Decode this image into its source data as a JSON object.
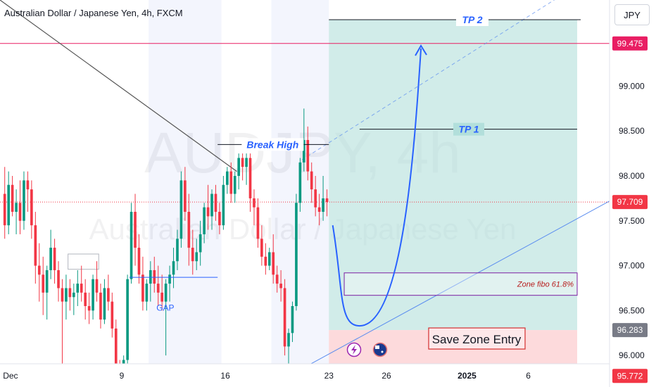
{
  "header": {
    "title": "Australian Dollar / Japanese Yen, 4h, FXCM",
    "currency_button": "JPY"
  },
  "watermark": {
    "symbol": "AUDJPY, 4h",
    "name": "Australian Dollar / Japanese Yen"
  },
  "colors": {
    "up": "#089981",
    "down": "#f23645",
    "accent_line": "#2962ff",
    "target_zone": "#b2dfdb",
    "stop_zone": "#fccbcd",
    "resistance": "#e91e63",
    "fibo_box": "#7b1fa2"
  },
  "annotations": {
    "tp2": "TP 2",
    "tp1": "TP 1",
    "break_high": "Break High",
    "gap": "GAP",
    "zone_fibo": "Zone fibo 61.8%",
    "save_zone": "Save Zone Entry"
  },
  "events": {
    "lightning_icon": "lightning-icon",
    "flag_icon": "australia-flag-icon"
  },
  "chart_data": {
    "type": "candlestick",
    "title": "Australian Dollar / Japanese Yen, 4h, FXCM",
    "y_axis": {
      "range": [
        95.6,
        100.0
      ],
      "ticks": [
        "99.000",
        "98.500",
        "98.000",
        "97.500",
        "97.000",
        "96.500",
        "96.000"
      ]
    },
    "x_axis": {
      "ticks": [
        {
          "label": "Dec",
          "bar": 2
        },
        {
          "label": "9",
          "bar": 31
        },
        {
          "label": "16",
          "bar": 58
        },
        {
          "label": "23",
          "bar": 85
        },
        {
          "label": "26",
          "bar": 100
        },
        {
          "label": "2025",
          "bar": 121
        },
        {
          "label": "6",
          "bar": 137
        }
      ]
    },
    "price_labels": [
      {
        "value": 99.475,
        "text": "99.475",
        "bg": "#e91e63",
        "fg": "#ffffff"
      },
      {
        "value": 97.709,
        "text": "97.709",
        "bg": "#f23645",
        "fg": "#ffffff"
      },
      {
        "value": 96.283,
        "text": "96.283",
        "bg": "#787b86",
        "fg": "#ffffff"
      },
      {
        "value": 95.772,
        "text": "95.772",
        "bg": "#f23645",
        "fg": "#ffffff"
      }
    ],
    "levels": {
      "tp2": 99.74,
      "tp1": 98.52,
      "resistance": 99.475,
      "current": 97.709,
      "entry": 96.283,
      "stop": 95.772,
      "fibo_zone": [
        96.67,
        96.92
      ],
      "gap_line": 96.87,
      "break_high": 98.35,
      "bottom_box": 95.87
    },
    "candles": [
      [
        97.8,
        98.1,
        97.3,
        97.45
      ],
      [
        97.45,
        98.05,
        97.35,
        97.9
      ],
      [
        97.9,
        98.0,
        97.55,
        97.6
      ],
      [
        97.6,
        97.85,
        97.35,
        97.7
      ],
      [
        97.7,
        97.95,
        97.35,
        97.5
      ],
      [
        97.5,
        98.05,
        97.4,
        97.95
      ],
      [
        97.95,
        98.05,
        97.6,
        97.85
      ],
      [
        97.85,
        97.95,
        97.3,
        97.45
      ],
      [
        97.45,
        97.6,
        96.8,
        97.0
      ],
      [
        97.0,
        97.25,
        96.6,
        96.9
      ],
      [
        96.9,
        97.1,
        96.45,
        96.7
      ],
      [
        96.7,
        97.0,
        96.4,
        96.95
      ],
      [
        96.95,
        97.4,
        96.85,
        97.2
      ],
      [
        97.2,
        97.3,
        96.8,
        96.95
      ],
      [
        96.95,
        97.05,
        96.6,
        96.75
      ],
      [
        96.75,
        96.85,
        95.9,
        96.6
      ],
      [
        96.6,
        96.9,
        96.4,
        96.75
      ],
      [
        96.75,
        96.85,
        96.5,
        96.65
      ],
      [
        96.65,
        96.8,
        96.45,
        96.7
      ],
      [
        96.7,
        96.95,
        96.55,
        96.8
      ],
      [
        96.8,
        97.0,
        96.6,
        96.7
      ],
      [
        96.7,
        96.85,
        96.4,
        96.55
      ],
      [
        96.55,
        96.7,
        96.35,
        96.5
      ],
      [
        96.5,
        96.9,
        96.4,
        96.85
      ],
      [
        96.85,
        97.05,
        96.6,
        96.7
      ],
      [
        96.7,
        96.8,
        96.3,
        96.4
      ],
      [
        96.4,
        96.85,
        96.35,
        96.75
      ],
      [
        96.75,
        96.9,
        96.5,
        96.6
      ],
      [
        96.6,
        96.7,
        96.2,
        96.3
      ],
      [
        96.3,
        96.4,
        95.7,
        95.8
      ],
      [
        95.8,
        95.95,
        95.6,
        95.7
      ],
      [
        95.7,
        96.0,
        95.6,
        95.95
      ],
      [
        95.95,
        96.9,
        95.9,
        96.85
      ],
      [
        96.85,
        97.7,
        96.8,
        97.6
      ],
      [
        97.6,
        97.8,
        97.0,
        97.2
      ],
      [
        97.2,
        97.35,
        96.8,
        96.9
      ],
      [
        96.9,
        97.1,
        96.5,
        96.6
      ],
      [
        96.6,
        96.85,
        96.5,
        96.8
      ],
      [
        96.8,
        97.05,
        96.6,
        96.95
      ],
      [
        96.95,
        97.1,
        96.7,
        96.8
      ],
      [
        96.8,
        97.0,
        96.55,
        96.7
      ],
      [
        96.7,
        96.9,
        96.5,
        96.6
      ],
      [
        96.6,
        96.85,
        96.0,
        96.8
      ],
      [
        96.8,
        97.0,
        96.6,
        96.9
      ],
      [
        96.9,
        97.2,
        96.75,
        97.05
      ],
      [
        97.05,
        97.4,
        96.95,
        97.3
      ],
      [
        97.3,
        98.05,
        97.2,
        97.95
      ],
      [
        97.95,
        98.1,
        97.5,
        97.6
      ],
      [
        97.6,
        97.8,
        97.0,
        97.2
      ],
      [
        97.2,
        97.4,
        96.9,
        97.05
      ],
      [
        97.05,
        97.3,
        96.95,
        97.15
      ],
      [
        97.15,
        97.5,
        97.0,
        97.35
      ],
      [
        97.35,
        97.7,
        97.25,
        97.65
      ],
      [
        97.65,
        97.9,
        97.4,
        97.55
      ],
      [
        97.55,
        97.85,
        97.4,
        97.8
      ],
      [
        97.8,
        97.9,
        97.5,
        97.6
      ],
      [
        97.6,
        97.7,
        97.35,
        97.45
      ],
      [
        97.45,
        98.0,
        97.4,
        97.9
      ],
      [
        97.9,
        98.1,
        97.8,
        98.05
      ],
      [
        98.05,
        98.15,
        97.7,
        97.8
      ],
      [
        97.8,
        98.05,
        97.7,
        98.0
      ],
      [
        98.0,
        98.25,
        97.85,
        98.2
      ],
      [
        98.2,
        98.25,
        97.95,
        98.1
      ],
      [
        98.1,
        98.25,
        97.9,
        98.2
      ],
      [
        98.2,
        98.25,
        97.6,
        97.75
      ],
      [
        97.75,
        97.85,
        97.45,
        97.65
      ],
      [
        97.65,
        97.75,
        97.2,
        97.3
      ],
      [
        97.3,
        97.45,
        97.0,
        97.1
      ],
      [
        97.1,
        97.25,
        96.9,
        97.0
      ],
      [
        97.0,
        97.2,
        96.95,
        97.15
      ],
      [
        97.15,
        97.35,
        96.8,
        96.9
      ],
      [
        96.9,
        97.0,
        96.7,
        96.8
      ],
      [
        96.8,
        96.95,
        96.6,
        96.75
      ],
      [
        96.75,
        96.85,
        96.0,
        96.1
      ],
      [
        96.1,
        96.3,
        95.85,
        96.25
      ],
      [
        96.25,
        96.6,
        96.15,
        96.55
      ],
      [
        96.55,
        97.8,
        96.5,
        97.7
      ],
      [
        97.7,
        98.2,
        97.6,
        98.15
      ],
      [
        98.15,
        98.75,
        98.05,
        98.4
      ],
      [
        98.4,
        98.55,
        97.95,
        98.05
      ],
      [
        98.05,
        98.15,
        97.7,
        97.85
      ],
      [
        97.85,
        98.0,
        97.55,
        97.65
      ],
      [
        97.65,
        97.8,
        97.45,
        97.6
      ],
      [
        97.6,
        98.0,
        97.5,
        97.75
      ],
      [
        97.75,
        97.85,
        97.55,
        97.71
      ]
    ],
    "projection": {
      "from": {
        "bar": 86,
        "value": 97.45
      },
      "bottom": {
        "bar": 93,
        "value": 96.33
      },
      "to": {
        "bar": 109,
        "value": 99.45
      }
    }
  }
}
